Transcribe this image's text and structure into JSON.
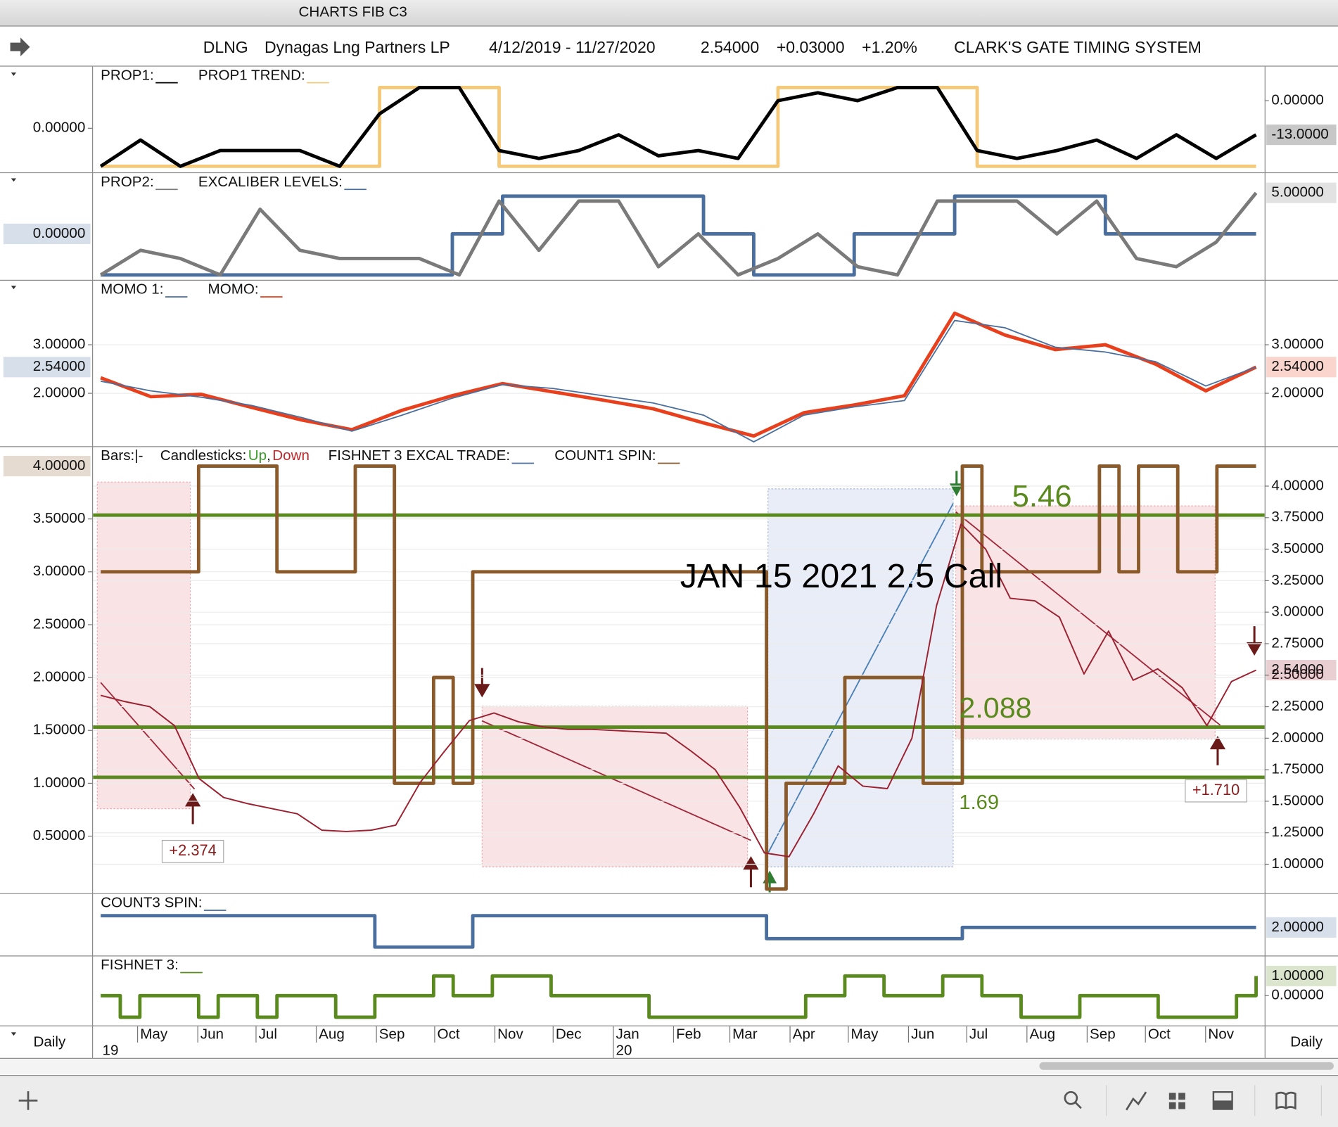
{
  "window_title": "CHARTS FIB C3",
  "header": {
    "symbol": "DLNG",
    "name": "Dynagas Lng Partners LP",
    "range": "4/12/2019 - 11/27/2020",
    "last": "2.54000",
    "change": "+0.03000",
    "change_pct": "+1.20%",
    "system": "CLARK'S GATE TIMING SYSTEM"
  },
  "panels": [
    {
      "type": "line",
      "ylim": [
        -27.3,
        13
      ],
      "yticks": [
        {
          "value": 0,
          "label": "0.00000"
        }
      ],
      "y2lim": [
        -1,
        1.4
      ],
      "y2ticks": [
        {
          "value": 0,
          "label": "0.00000"
        }
      ],
      "series": [
        {
          "name": "PROP1:",
          "color": "#000000",
          "style": "line",
          "last_label": "-13.0000",
          "label_side": "right",
          "values": [
            -25,
            -15,
            -25,
            -19,
            -19,
            -19,
            -25,
            -5,
            5,
            5,
            -19,
            -22,
            -19,
            -13,
            -21,
            -19,
            -22,
            0,
            3,
            0,
            5,
            5,
            -19,
            -22,
            -19,
            -15,
            -22,
            -13,
            -22,
            -13
          ]
        },
        {
          "name": "PROP1 TREND:",
          "color": "#f5c97a",
          "style": "step",
          "values": [
            -25,
            -25,
            -25,
            -25,
            -25,
            -25,
            -25,
            5,
            5,
            5,
            -25,
            -25,
            -25,
            -25,
            -25,
            -25,
            -25,
            5,
            5,
            5,
            5,
            5,
            -25,
            -25,
            -25,
            -25,
            -25,
            -25,
            -25,
            -25
          ]
        }
      ]
    },
    {
      "type": "line",
      "ylim": [
        -5.6,
        7.4
      ],
      "series": [
        {
          "name": "PROP2:",
          "color": "#7a7a7a",
          "style": "line",
          "last_label": "5.00000",
          "label_side": "right",
          "values": [
            -5,
            -2,
            -3,
            -5,
            3,
            -2,
            -3,
            -3,
            -3,
            -5,
            4,
            -2,
            4,
            4,
            -4,
            0,
            -5,
            -3,
            0,
            -4,
            -5,
            4,
            4,
            4,
            0,
            4,
            -3,
            -4,
            -1,
            5
          ]
        },
        {
          "name": "EXCALIBER LEVELS:",
          "color": "#4a6f9e",
          "style": "step",
          "last_label": "0.00000",
          "label_side": "left",
          "values": [
            -5,
            -5,
            -5,
            -5,
            -5,
            -5,
            -5,
            0,
            4.6,
            4.6,
            4.6,
            4.6,
            0,
            -5,
            -5,
            0,
            0,
            4.6,
            4.6,
            4.6,
            0,
            0,
            0,
            0
          ]
        }
      ]
    },
    {
      "type": "line",
      "grid": true,
      "ylim": [
        0.91,
        4.32
      ],
      "yticks": [
        {
          "value": 3,
          "label": "3.00000"
        },
        {
          "value": 2,
          "label": "2.00000"
        }
      ],
      "y2lim": [
        0.91,
        4.32
      ],
      "y2ticks": [
        {
          "value": 3,
          "label": "3.00000"
        },
        {
          "value": 2,
          "label": "2.00000"
        }
      ],
      "series": [
        {
          "name": "MOMO 1:",
          "color": "#4a6f9e",
          "style": "line",
          "last_label": "2.54000",
          "label_side": "left",
          "values": [
            2.25,
            2.05,
            1.92,
            1.75,
            1.5,
            1.22,
            1.55,
            1.9,
            2.18,
            2.1,
            1.95,
            1.8,
            1.55,
            1.0,
            1.55,
            1.72,
            1.85,
            3.5,
            3.35,
            2.95,
            2.85,
            2.65,
            2.15,
            2.54
          ]
        },
        {
          "name": "MOMO:",
          "color": "#e8401c",
          "style": "line",
          "last_label": "2.54000",
          "label_side": "right",
          "values": [
            2.32,
            1.93,
            1.98,
            1.71,
            1.45,
            1.25,
            1.65,
            1.95,
            2.2,
            2.03,
            1.86,
            1.68,
            1.39,
            1.12,
            1.6,
            1.76,
            1.95,
            3.65,
            3.2,
            2.9,
            3.0,
            2.6,
            2.05,
            2.54
          ]
        }
      ]
    },
    {
      "type": "line",
      "grid": true,
      "ylim": [
        0.77,
        4.31
      ],
      "yticks": [
        {
          "value": 4,
          "label": "4.00000"
        },
        {
          "value": 3.75,
          "label": "3.75000"
        },
        {
          "value": 3.5,
          "label": "3.50000"
        },
        {
          "value": 3.25,
          "label": "3.25000"
        },
        {
          "value": 3,
          "label": "3.00000"
        },
        {
          "value": 2.75,
          "label": "2.75000"
        },
        {
          "value": 2.5,
          "label": "2.50000"
        },
        {
          "value": 2.25,
          "label": "2.25000"
        },
        {
          "value": 2,
          "label": "2.00000"
        },
        {
          "value": 1.75,
          "label": "1.75000"
        },
        {
          "value": 1.5,
          "label": "1.50000"
        },
        {
          "value": 1.25,
          "label": "1.25000"
        },
        {
          "value": 1,
          "label": "1.00000"
        }
      ],
      "y2lim": [
        -0.04,
        4.18
      ],
      "y2ticks": [
        {
          "value": 3.5,
          "label": "3.50000"
        },
        {
          "value": 3,
          "label": "3.00000"
        },
        {
          "value": 2.5,
          "label": "2.50000"
        },
        {
          "value": 2,
          "label": "2.00000"
        },
        {
          "value": 1.5,
          "label": "1.50000"
        },
        {
          "value": 1,
          "label": "1.00000"
        },
        {
          "value": 0.5,
          "label": "0.50000"
        }
      ],
      "legend": [
        {
          "text": "Bars:|-"
        },
        {
          "text": "Candlesticks:"
        },
        {
          "text": "Up",
          "color": "#3a9a2a"
        },
        {
          "text": ","
        },
        {
          "text": "Down",
          "color": "#c0282b"
        },
        {
          "text": "FISHNET 3 EXCAL TRADE:",
          "color": "#4a6f9e",
          "swatch": true
        }
      ],
      "levels": [
        3.77,
        2.088,
        1.69
      ],
      "level_color": "#5a8a1e",
      "annotations": [
        "JAN 15 2021 2.5 Call",
        "5.46",
        "2.088",
        "1.69",
        "+2.374",
        "+1.710"
      ],
      "series": [
        {
          "color": "#9b2030",
          "style": "line",
          "last_label": "2.54000",
          "label_side": "right",
          "values": [
            2.34,
            2.29,
            2.25,
            2.1,
            1.68,
            1.53,
            1.48,
            1.44,
            1.4,
            1.27,
            1.26,
            1.27,
            1.31,
            1.65,
            1.9,
            2.14,
            2.2,
            2.13,
            2.09,
            2.07,
            2.07,
            2.06,
            2.05,
            2.04,
            1.9,
            1.75,
            1.45,
            1.09,
            1.06,
            1.4,
            1.78,
            1.62,
            1.6,
            2.0,
            3.05,
            3.7,
            3.5,
            3.11,
            3.09,
            2.96,
            2.51,
            2.85,
            2.46,
            2.55,
            2.4,
            2.1,
            2.45,
            2.54
          ]
        },
        {
          "name": "COUNT1 SPIN:",
          "color": "#8b5a2b",
          "style": "step",
          "axis": "y2",
          "last_label": "4.00000",
          "label_side": "left",
          "values": [
            3,
            3,
            3,
            3,
            3,
            4,
            4,
            4,
            4,
            3,
            3,
            3,
            3,
            4,
            4,
            1,
            1,
            2,
            1,
            3,
            3,
            3,
            3,
            3,
            3,
            3,
            3,
            3,
            3,
            3,
            3,
            3,
            3,
            3,
            0,
            1,
            1,
            1,
            2,
            2,
            2,
            2,
            1,
            1,
            4,
            3,
            3,
            3,
            3,
            3,
            3,
            4,
            3,
            4,
            4,
            3,
            3,
            4,
            4,
            4
          ]
        }
      ]
    },
    {
      "type": "line",
      "ylim": [
        0.57,
        3.7
      ],
      "series": [
        {
          "name": "COUNT3 SPIN:",
          "color": "#4a6f9e",
          "style": "step",
          "last_label": "2.00000",
          "label_side": "right",
          "values": [
            2.6,
            2.6,
            2.6,
            2.6,
            2.6,
            2.6,
            2.6,
            2.6,
            2.6,
            2.6,
            2.6,
            2.6,
            2.6,
            2.6,
            1.0,
            1.0,
            1.0,
            1.0,
            1.0,
            2.6,
            2.6,
            2.6,
            2.6,
            2.6,
            2.6,
            2.6,
            2.6,
            2.6,
            2.6,
            2.6,
            2.6,
            2.6,
            2.6,
            2.6,
            1.43,
            1.43,
            1.43,
            1.43,
            1.43,
            1.43,
            1.43,
            1.43,
            1.43,
            1.43,
            2.0,
            2.0,
            2.0,
            2.0,
            2.0,
            2.0,
            2.0,
            2.0,
            2.0,
            2.0,
            2.0,
            2.0,
            2.0,
            2.0,
            2.0,
            2.0
          ]
        }
      ]
    },
    {
      "type": "line",
      "ylim": [
        -1.52,
        2.0
      ],
      "yticks": [
        {
          "value": 0,
          "label": "0.00000"
        }
      ],
      "series": [
        {
          "name": "FISHNET 3:",
          "color": "#5a8a1e",
          "style": "step",
          "last_label": "1.00000",
          "label_side": "right",
          "values": [
            0,
            -1.1,
            0,
            0,
            0,
            -1.1,
            0,
            0,
            -1.1,
            0,
            0,
            0,
            -1.1,
            -1.1,
            0,
            0,
            0,
            1,
            0,
            0,
            1,
            1,
            1,
            0,
            0,
            0,
            0,
            0,
            -1.1,
            -1.1,
            -1.1,
            -1.1,
            -1.1,
            -1.1,
            -1.1,
            -1.1,
            0,
            0,
            1,
            1,
            0,
            0,
            0,
            1,
            1,
            0,
            0,
            -1.1,
            -1.1,
            -1.1,
            0,
            0,
            0,
            0,
            -1.1,
            -1.1,
            -1.1,
            -1.1,
            0,
            1
          ]
        }
      ]
    }
  ],
  "x_axis": {
    "months": [
      "May",
      "Jun",
      "Jul",
      "Aug",
      "Sep",
      "Oct",
      "Nov",
      "Dec",
      "Jan",
      "Feb",
      "Mar",
      "Apr",
      "May",
      "Jun",
      "Jul",
      "Aug",
      "Sep",
      "Oct",
      "Nov"
    ],
    "years": [
      "19",
      "20"
    ],
    "interval": "Daily"
  }
}
